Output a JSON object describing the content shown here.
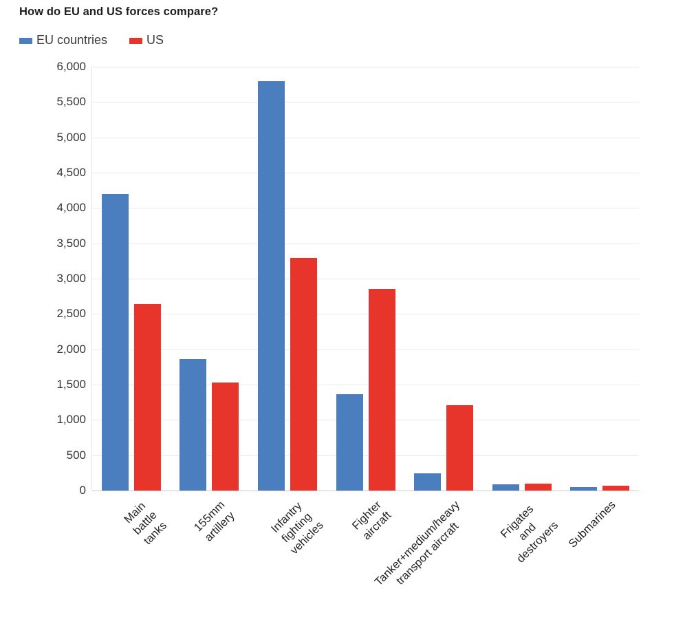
{
  "header": {
    "title": "How do EU and US forces compare?"
  },
  "legend": {
    "items": [
      {
        "label": "EU countries",
        "color": "#4a7ebf"
      },
      {
        "label": "US",
        "color": "#e8352b"
      }
    ]
  },
  "chart_data": {
    "type": "bar",
    "title": "How do EU and US forces compare?",
    "categories": [
      "Main battle tanks",
      "155mm artillery",
      "Infantry fighting\nvehicles",
      "Fighter aircraft",
      "Tanker+medium/heavy\ntransport aircraft",
      "Frigates and destroyers",
      "Submarines"
    ],
    "series": [
      {
        "name": "EU countries",
        "color": "#4a7ebf",
        "values": [
          4200,
          1860,
          5800,
          1360,
          240,
          90,
          45
        ]
      },
      {
        "name": "US",
        "color": "#e8352b",
        "values": [
          2640,
          1530,
          3290,
          2850,
          1210,
          100,
          65
        ]
      }
    ],
    "xlabel": "",
    "ylabel": "",
    "ylim": [
      0,
      6000
    ],
    "y_tick_step": 500,
    "y_tick_labels": [
      "0",
      "500",
      "1,000",
      "1,500",
      "2,000",
      "2,500",
      "3,000",
      "3,500",
      "4,000",
      "4,500",
      "5,000",
      "5,500",
      "6,000"
    ],
    "grid": "horizontal",
    "legend_position": "top-left",
    "colors": {
      "grid": "#eaeaea",
      "baseline": "#c9c9c9",
      "axis_line": "#e2e2e2",
      "tick_text": "#333333",
      "label_text": "#222222",
      "title_text": "#1e1e1e"
    }
  }
}
